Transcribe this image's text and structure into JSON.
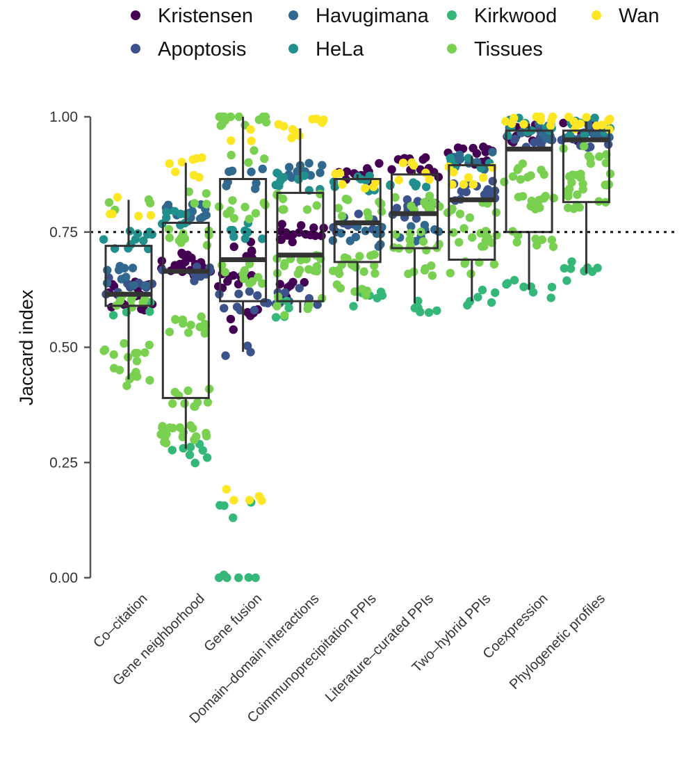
{
  "chart_data": {
    "type": "boxplot-jitter",
    "ylabel": "Jaccard index",
    "ylim": [
      0,
      1
    ],
    "yticks": [
      "0.00",
      "0.25",
      "0.50",
      "0.75",
      "1.00"
    ],
    "yticks_values": [
      0,
      0.25,
      0.5,
      0.75,
      1.0
    ],
    "reference_line": 0.75,
    "legend_position": "top",
    "grid": false,
    "categories": [
      "Co–citation",
      "Gene neighborhood",
      "Gene fusion",
      "Domain–domain interactions",
      "Coimmunoprecipitation PPIs",
      "Literature–curated PPIs",
      "Two–hybrid PPIs",
      "Coexpression",
      "Phylogenetic profiles"
    ],
    "boxes": [
      {
        "whisker_low": 0.43,
        "q1": 0.59,
        "median": 0.615,
        "q3": 0.72,
        "whisker_high": 0.82
      },
      {
        "whisker_low": 0.28,
        "q1": 0.39,
        "median": 0.665,
        "q3": 0.77,
        "whisker_high": 0.9
      },
      {
        "whisker_low": 0.49,
        "q1": 0.6,
        "median": 0.69,
        "q3": 0.865,
        "whisker_high": 1.0
      },
      {
        "whisker_low": 0.575,
        "q1": 0.6,
        "median": 0.7,
        "q3": 0.835,
        "whisker_high": 0.975
      },
      {
        "whisker_low": 0.6,
        "q1": 0.685,
        "median": 0.77,
        "q3": 0.865,
        "whisker_high": 0.875
      },
      {
        "whisker_low": 0.595,
        "q1": 0.715,
        "median": 0.79,
        "q3": 0.875,
        "whisker_high": 0.885
      },
      {
        "whisker_low": 0.6,
        "q1": 0.69,
        "median": 0.82,
        "q3": 0.895,
        "whisker_high": 0.915
      },
      {
        "whisker_low": 0.625,
        "q1": 0.75,
        "median": 0.93,
        "q3": 0.97,
        "whisker_high": 0.985
      },
      {
        "whisker_low": 0.66,
        "q1": 0.815,
        "median": 0.95,
        "q3": 0.97,
        "whisker_high": 0.99
      }
    ],
    "series": [
      {
        "name": "Kristensen",
        "color": "#440154",
        "clusters": [
          [
            0,
            0.62,
            14
          ],
          [
            0,
            0.595,
            6
          ],
          [
            1,
            0.685,
            18
          ],
          [
            1,
            0.665,
            10
          ],
          [
            2,
            0.64,
            10
          ],
          [
            2,
            0.56,
            6
          ],
          [
            2,
            0.71,
            6
          ],
          [
            3,
            0.75,
            16
          ],
          [
            3,
            0.62,
            6
          ],
          [
            4,
            0.88,
            12
          ],
          [
            5,
            0.89,
            12
          ],
          [
            6,
            0.915,
            14
          ],
          [
            7,
            0.965,
            10
          ],
          [
            8,
            0.965,
            10
          ]
        ]
      },
      {
        "name": "Apoptosis",
        "color": "#3b528b",
        "clusters": [
          [
            0,
            0.63,
            10
          ],
          [
            1,
            0.66,
            8
          ],
          [
            2,
            0.6,
            10
          ],
          [
            2,
            0.5,
            3
          ],
          [
            3,
            0.61,
            10
          ],
          [
            4,
            0.77,
            10
          ],
          [
            5,
            0.8,
            12
          ],
          [
            6,
            0.84,
            16
          ],
          [
            7,
            0.955,
            10
          ],
          [
            8,
            0.955,
            10
          ]
        ]
      },
      {
        "name": "Havugimana",
        "color": "#31688e",
        "clusters": [
          [
            0,
            0.655,
            10
          ],
          [
            1,
            0.795,
            14
          ],
          [
            2,
            0.865,
            8
          ],
          [
            3,
            0.885,
            10
          ],
          [
            4,
            0.74,
            12
          ],
          [
            5,
            0.745,
            8
          ],
          [
            6,
            0.905,
            10
          ],
          [
            7,
            0.97,
            10
          ],
          [
            8,
            0.97,
            10
          ]
        ]
      },
      {
        "name": "HeLa",
        "color": "#21908c",
        "clusters": [
          [
            0,
            0.735,
            12
          ],
          [
            1,
            0.78,
            8
          ],
          [
            2,
            0.75,
            8
          ],
          [
            3,
            0.86,
            10
          ],
          [
            4,
            0.855,
            8
          ],
          [
            5,
            0.87,
            6
          ],
          [
            6,
            0.9,
            6
          ],
          [
            7,
            0.98,
            10
          ],
          [
            8,
            0.98,
            10
          ]
        ]
      },
      {
        "name": "Kirkwood",
        "color": "#35b779",
        "clusters": [
          [
            0,
            0.585,
            4
          ],
          [
            1,
            0.27,
            8
          ],
          [
            2,
            0.145,
            4
          ],
          [
            2,
            0.005,
            6
          ],
          [
            3,
            0.585,
            6
          ],
          [
            4,
            0.6,
            6
          ],
          [
            5,
            0.595,
            6
          ],
          [
            6,
            0.605,
            6
          ],
          [
            7,
            0.625,
            8
          ],
          [
            8,
            0.665,
            8
          ]
        ]
      },
      {
        "name": "Tissues",
        "color": "#7ad151",
        "clusters": [
          [
            0,
            0.49,
            10
          ],
          [
            0,
            0.435,
            8
          ],
          [
            0,
            0.6,
            8
          ],
          [
            0,
            0.82,
            4
          ],
          [
            1,
            0.31,
            18
          ],
          [
            1,
            0.39,
            10
          ],
          [
            1,
            0.55,
            12
          ],
          [
            1,
            0.74,
            10
          ],
          [
            1,
            0.82,
            4
          ],
          [
            2,
            1.0,
            14
          ],
          [
            2,
            0.8,
            10
          ],
          [
            2,
            0.66,
            10
          ],
          [
            2,
            0.92,
            4
          ],
          [
            3,
            0.68,
            16
          ],
          [
            3,
            0.82,
            8
          ],
          [
            3,
            0.59,
            6
          ],
          [
            4,
            0.68,
            16
          ],
          [
            4,
            0.8,
            10
          ],
          [
            4,
            0.63,
            6
          ],
          [
            5,
            0.73,
            12
          ],
          [
            5,
            0.82,
            10
          ],
          [
            5,
            0.66,
            6
          ],
          [
            6,
            0.74,
            14
          ],
          [
            6,
            0.67,
            6
          ],
          [
            6,
            0.8,
            8
          ],
          [
            7,
            0.81,
            14
          ],
          [
            7,
            0.88,
            10
          ],
          [
            7,
            0.74,
            8
          ],
          [
            8,
            0.86,
            14
          ],
          [
            8,
            0.82,
            10
          ],
          [
            8,
            0.92,
            8
          ]
        ]
      },
      {
        "name": "Wan",
        "color": "#fde725",
        "clusters": [
          [
            0,
            0.805,
            5
          ],
          [
            1,
            0.89,
            8
          ],
          [
            2,
            0.17,
            5
          ],
          [
            2,
            0.965,
            3
          ],
          [
            3,
            0.975,
            10
          ],
          [
            4,
            0.865,
            6
          ],
          [
            5,
            0.88,
            6
          ],
          [
            6,
            0.875,
            8
          ],
          [
            7,
            0.99,
            10
          ],
          [
            8,
            0.99,
            10
          ]
        ]
      }
    ],
    "legend_order": [
      "Kristensen",
      "Havugimana",
      "Kirkwood",
      "Wan",
      "Apoptosis",
      "HeLa",
      "Tissues"
    ]
  }
}
